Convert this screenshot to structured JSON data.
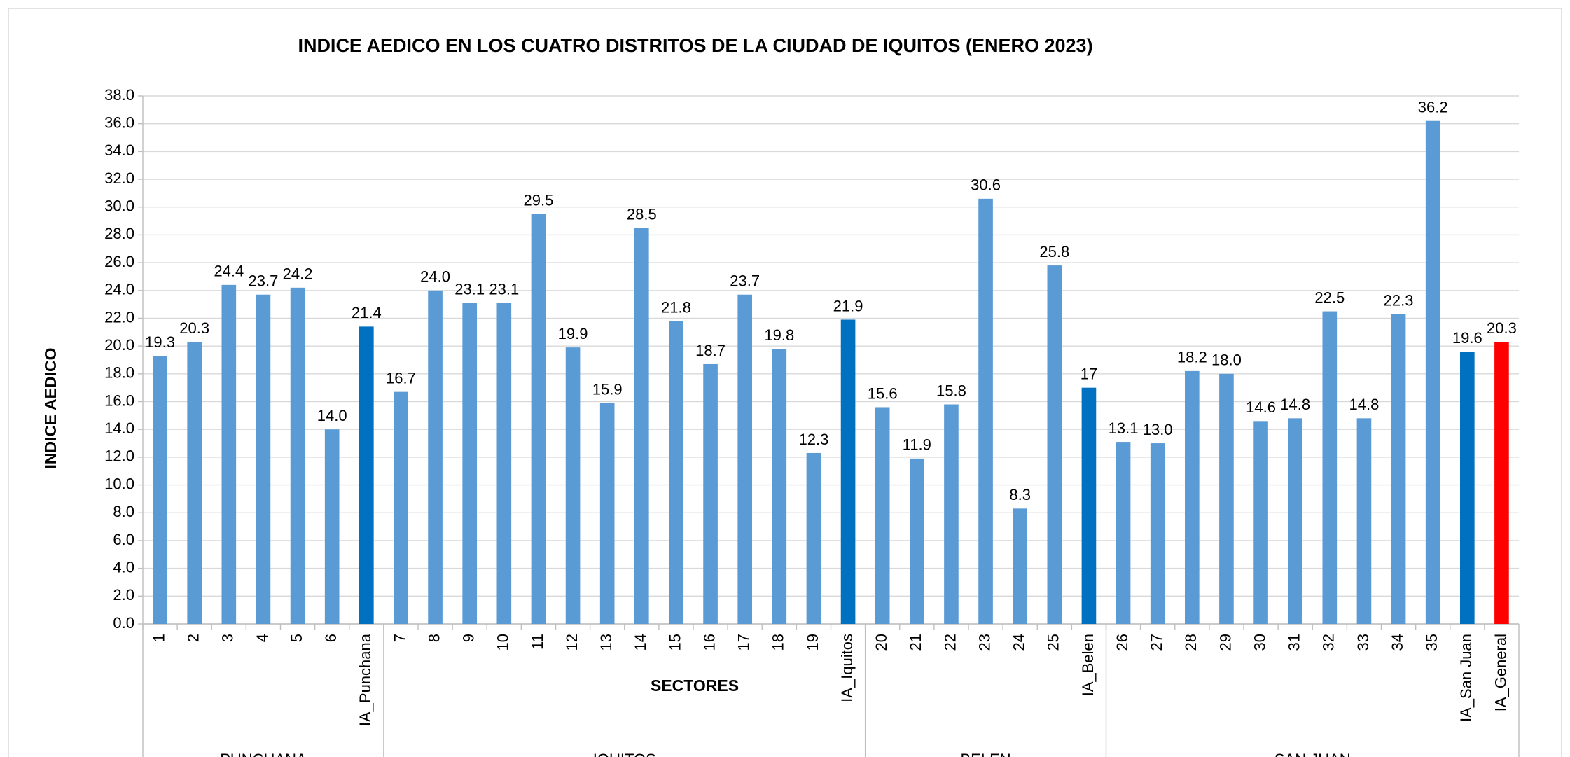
{
  "chart_data": {
    "type": "bar",
    "title": "INDICE  AEDICO EN LOS CUATRO DISTRITOS DE LA CIUDAD DE IQUITOS (ENERO 2023)",
    "x_label": "SECTORES",
    "y_label": "INDICE AEDICO",
    "categories": [
      "1",
      "2",
      "3",
      "4",
      "5",
      "6",
      "IA_Punchana",
      "7",
      "8",
      "9",
      "10",
      "11",
      "12",
      "13",
      "14",
      "15",
      "16",
      "17",
      "18",
      "19",
      "IA_Iquitos",
      "20",
      "21",
      "22",
      "23",
      "24",
      "25",
      "IA_Belen",
      "26",
      "27",
      "28",
      "29",
      "30",
      "31",
      "32",
      "33",
      "34",
      "35",
      "IA_San Juan",
      "IA_General"
    ],
    "values": [
      19.3,
      20.3,
      24.4,
      23.7,
      24.2,
      14.0,
      21.4,
      16.7,
      24.0,
      23.1,
      23.1,
      29.5,
      19.9,
      15.9,
      28.5,
      21.8,
      18.7,
      23.7,
      19.8,
      12.3,
      21.9,
      15.6,
      11.9,
      15.8,
      30.6,
      8.3,
      25.8,
      17,
      13.1,
      13.0,
      18.2,
      18.0,
      14.6,
      14.8,
      22.5,
      14.8,
      22.3,
      36.2,
      19.6,
      20.3
    ],
    "value_labels": [
      "19.3",
      "20.3",
      "24.4",
      "23.7",
      "24.2",
      "14.0",
      "21.4",
      "16.7",
      "24.0",
      "23.1",
      "23.1",
      "29.5",
      "19.9",
      "15.9",
      "28.5",
      "21.8",
      "18.7",
      "23.7",
      "19.8",
      "12.3",
      "21.9",
      "15.6",
      "11.9",
      "15.8",
      "30.6",
      "8.3",
      "25.8",
      "17",
      "13.1",
      "13.0",
      "18.2",
      "18.0",
      "14.6",
      "14.8",
      "22.5",
      "14.8",
      "22.3",
      "36.2",
      "19.6",
      "20.3"
    ],
    "colors": [
      "#5b9bd5",
      "#5b9bd5",
      "#5b9bd5",
      "#5b9bd5",
      "#5b9bd5",
      "#5b9bd5",
      "#0070c0",
      "#5b9bd5",
      "#5b9bd5",
      "#5b9bd5",
      "#5b9bd5",
      "#5b9bd5",
      "#5b9bd5",
      "#5b9bd5",
      "#5b9bd5",
      "#5b9bd5",
      "#5b9bd5",
      "#5b9bd5",
      "#5b9bd5",
      "#5b9bd5",
      "#0070c0",
      "#5b9bd5",
      "#5b9bd5",
      "#5b9bd5",
      "#5b9bd5",
      "#5b9bd5",
      "#5b9bd5",
      "#0070c0",
      "#5b9bd5",
      "#5b9bd5",
      "#5b9bd5",
      "#5b9bd5",
      "#5b9bd5",
      "#5b9bd5",
      "#5b9bd5",
      "#5b9bd5",
      "#5b9bd5",
      "#5b9bd5",
      "#0070c0",
      "#ff0000"
    ],
    "groups": [
      {
        "label": "PUNCHANA",
        "categories": 7
      },
      {
        "label": "IQUITOS",
        "categories": 14
      },
      {
        "label": "BELEN",
        "categories": 7
      },
      {
        "label": "SAN JUAN",
        "categories": 12
      }
    ],
    "ylim": [
      0,
      38
    ],
    "yticks": [
      {
        "value": 0,
        "label": "0.0"
      },
      {
        "value": 2,
        "label": "2.0"
      },
      {
        "value": 4,
        "label": "4.0"
      },
      {
        "value": 6,
        "label": "6.0"
      },
      {
        "value": 8,
        "label": "8.0"
      },
      {
        "value": 10,
        "label": "10.0"
      },
      {
        "value": 12,
        "label": "12.0"
      },
      {
        "value": 14,
        "label": "14.0"
      },
      {
        "value": 16,
        "label": "16.0"
      },
      {
        "value": 18,
        "label": "18.0"
      },
      {
        "value": 20,
        "label": "20.0"
      },
      {
        "value": 22,
        "label": "22.0"
      },
      {
        "value": 24,
        "label": "24.0"
      },
      {
        "value": 26,
        "label": "26.0"
      },
      {
        "value": 28,
        "label": "28.0"
      },
      {
        "value": 30,
        "label": "30.0"
      },
      {
        "value": 32,
        "label": "32.0"
      },
      {
        "value": 34,
        "label": "34.0"
      },
      {
        "value": 36,
        "label": "36.0"
      },
      {
        "value": 38,
        "label": "38.0"
      }
    ],
    "grid": true
  }
}
